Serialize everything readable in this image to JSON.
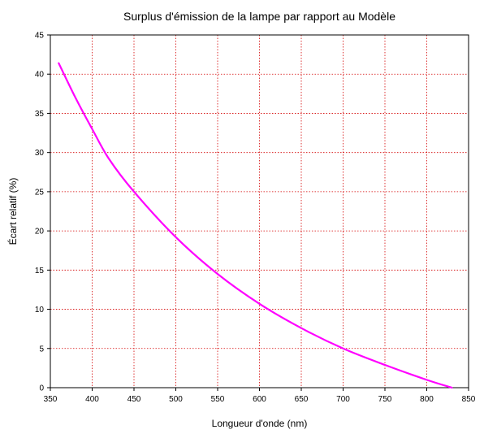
{
  "chart_data": {
    "type": "line",
    "title": "Surplus d'émission de la lampe par rapport au Modèle",
    "xlabel": "Longueur d'onde (nm)",
    "ylabel": "Écart relatif (%)",
    "xlim": [
      350,
      850
    ],
    "ylim": [
      0,
      45
    ],
    "x_ticks": [
      350,
      400,
      450,
      500,
      550,
      600,
      650,
      700,
      750,
      800,
      850
    ],
    "y_ticks": [
      0,
      5,
      10,
      15,
      20,
      25,
      30,
      35,
      40,
      45
    ],
    "grid": true,
    "line_color": "#ff00ff",
    "grid_color": "#d40000",
    "series": [
      {
        "x": [
          360,
          380,
          400,
          420,
          450,
          500,
          550,
          600,
          650,
          700,
          750,
          800,
          830
        ],
        "values": [
          41.4,
          37.0,
          33.0,
          29.2,
          25.0,
          19.2,
          14.5,
          10.7,
          7.6,
          5.0,
          2.9,
          1.0,
          0.0
        ]
      }
    ]
  }
}
